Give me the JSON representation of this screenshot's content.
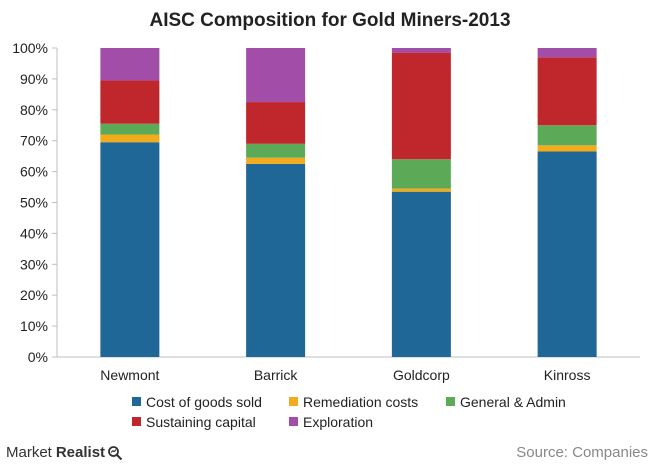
{
  "brand": {
    "word1": "Market",
    "word2": "Realist",
    "icon": "magnifier-icon"
  },
  "source": "Source: Companies",
  "chart_data": {
    "type": "stacked-bar",
    "title": "AISC Composition for Gold Miners-2013",
    "categories": [
      "Newmont",
      "Barrick",
      "Goldcorp",
      "Kinross"
    ],
    "y_ticks": [
      "0%",
      "10%",
      "20%",
      "30%",
      "40%",
      "50%",
      "60%",
      "70%",
      "80%",
      "90%",
      "100%"
    ],
    "ylim": [
      0,
      100
    ],
    "grid": false,
    "legend_position": "bottom",
    "series": [
      {
        "name": "Cost of goods sold",
        "color": "#1f6796",
        "values": [
          69.5,
          62.5,
          53.5,
          66.5
        ]
      },
      {
        "name": "Remediation costs",
        "color": "#f2ab1c",
        "values": [
          2.5,
          2.0,
          1.0,
          2.0
        ]
      },
      {
        "name": "General & Admin",
        "color": "#5caa58",
        "values": [
          3.5,
          4.5,
          9.5,
          6.5
        ]
      },
      {
        "name": "Sustaining capital",
        "color": "#c0272d",
        "values": [
          14.0,
          13.5,
          34.5,
          22.0
        ]
      },
      {
        "name": "Exploration",
        "color": "#a24ea8",
        "values": [
          10.5,
          17.5,
          1.5,
          3.0
        ]
      }
    ]
  }
}
